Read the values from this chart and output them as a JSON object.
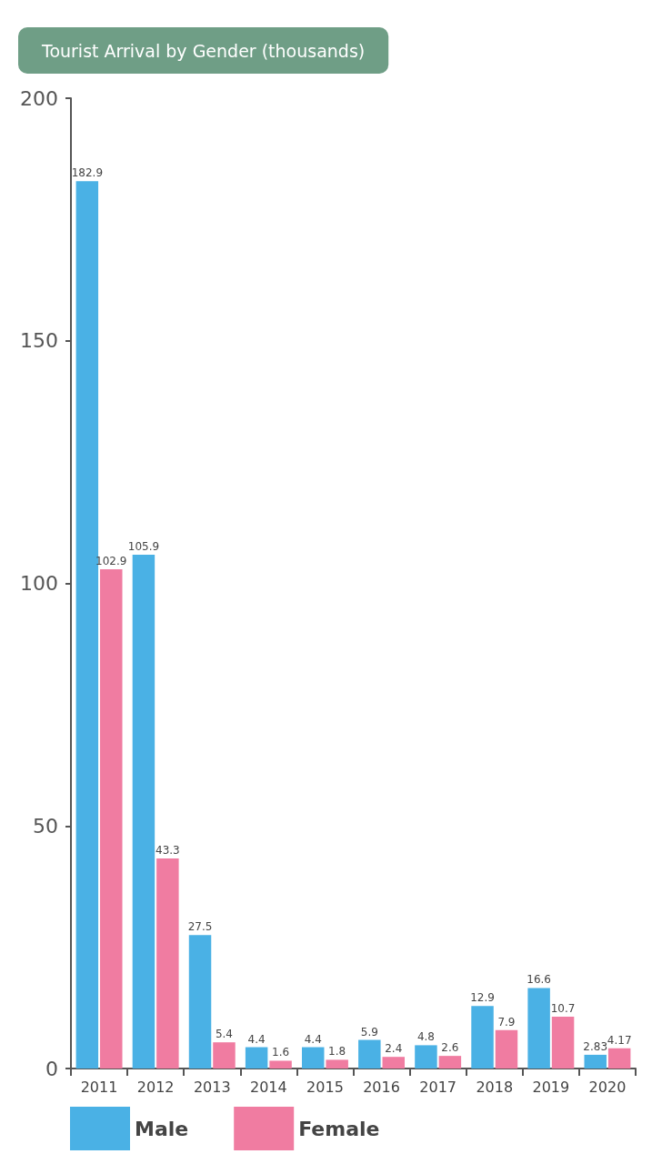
{
  "chart_data": {
    "type": "bar",
    "title": "Tourist Arrival by Gender (thousands)",
    "categories": [
      "2011",
      "2012",
      "2013",
      "2014",
      "2015",
      "2016",
      "2017",
      "2018",
      "2019",
      "2020"
    ],
    "series": [
      {
        "name": "Male",
        "color": "#4ab1e5",
        "values": [
          182.9,
          105.9,
          27.5,
          4.4,
          4.4,
          5.9,
          4.8,
          12.9,
          16.6,
          2.83
        ]
      },
      {
        "name": "Female",
        "color": "#f07ca1",
        "values": [
          102.9,
          43.3,
          5.4,
          1.6,
          1.8,
          2.4,
          2.6,
          7.9,
          10.7,
          4.17
        ]
      }
    ],
    "ylim": [
      0,
      200
    ],
    "yticks": [
      0,
      50,
      100,
      150,
      200
    ],
    "grid": false,
    "legend": "bottom left",
    "data_labels": true
  }
}
